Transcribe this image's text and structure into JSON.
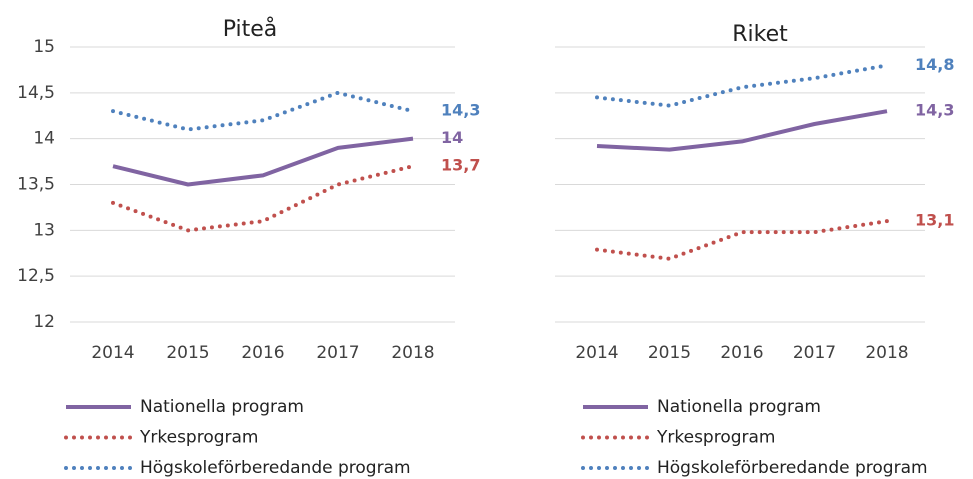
{
  "chart_data": [
    {
      "type": "line",
      "title": "Piteå",
      "categories": [
        "2014",
        "2015",
        "2016",
        "2017",
        "2018"
      ],
      "ylim": [
        12,
        15
      ],
      "yticks": [
        12,
        {
          "value": 12.5,
          "label": "12,5"
        },
        13,
        {
          "value": 13.5,
          "label": "13,5"
        },
        14,
        {
          "value": 14.5,
          "label": "14,5"
        },
        15
      ],
      "ytick_labels": true,
      "grid": true,
      "series": [
        {
          "name": "Nationella program",
          "color": "#8064a2",
          "style": "solid",
          "values": [
            13.7,
            13.5,
            13.6,
            13.9,
            14
          ],
          "value_labels": [
            null,
            null,
            null,
            null,
            "14"
          ]
        },
        {
          "name": "Yrkesprogram",
          "color": "#c0504d",
          "style": "dotted",
          "values": [
            13.3,
            13.0,
            13.1,
            13.5,
            13.7
          ],
          "value_labels": [
            null,
            null,
            null,
            null,
            "13,7"
          ]
        },
        {
          "name": "Högskoleförberedande program",
          "color": "#4f81bd",
          "style": "dotted",
          "values": [
            14.3,
            14.1,
            14.2,
            14.5,
            14.3
          ],
          "value_labels": [
            null,
            null,
            null,
            null,
            "14,3"
          ]
        }
      ]
    },
    {
      "type": "line",
      "title": "Riket",
      "categories": [
        "2014",
        "2015",
        "2016",
        "2017",
        "2018"
      ],
      "ylim": [
        12,
        15
      ],
      "yticks": [
        12,
        12.5,
        13,
        13.5,
        14,
        14.5,
        15
      ],
      "ytick_labels": false,
      "grid": true,
      "series": [
        {
          "name": "Nationella program",
          "color": "#8064a2",
          "style": "solid",
          "values": [
            13.92,
            13.88,
            13.97,
            14.16,
            14.3
          ],
          "value_labels": [
            null,
            null,
            null,
            null,
            "14,3"
          ]
        },
        {
          "name": "Yrkesprogram",
          "color": "#c0504d",
          "style": "dotted",
          "values": [
            12.79,
            12.69,
            12.98,
            12.98,
            13.1
          ],
          "value_labels": [
            null,
            null,
            null,
            null,
            "13,1"
          ]
        },
        {
          "name": "Högskoleförberedande program",
          "color": "#4f81bd",
          "style": "dotted",
          "values": [
            14.45,
            14.36,
            14.56,
            14.66,
            14.8
          ],
          "value_labels": [
            null,
            null,
            null,
            null,
            "14,8"
          ]
        }
      ]
    }
  ]
}
